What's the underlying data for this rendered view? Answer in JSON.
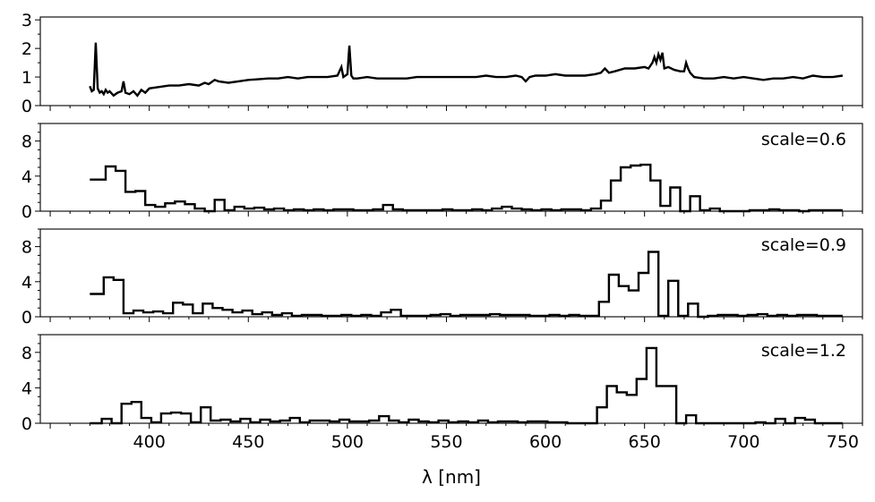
{
  "chart_data": [
    {
      "type": "line",
      "title": "",
      "xlabel": "",
      "ylabel": "",
      "xlim": [
        345,
        760
      ],
      "ylim": [
        0,
        3.1
      ],
      "yticks": [
        0,
        1,
        2,
        3
      ],
      "grid": false,
      "series": [
        {
          "name": "",
          "x": [
            370,
            371,
            372,
            373,
            374,
            375,
            376,
            377,
            378,
            379,
            380,
            382,
            384,
            386,
            387,
            388,
            390,
            392,
            394,
            396,
            398,
            400,
            405,
            410,
            415,
            420,
            425,
            428,
            430,
            433,
            435,
            440,
            445,
            450,
            455,
            460,
            465,
            470,
            475,
            480,
            485,
            490,
            495,
            497,
            498,
            499,
            500,
            501,
            502,
            503,
            505,
            510,
            515,
            520,
            525,
            530,
            535,
            540,
            545,
            550,
            555,
            560,
            565,
            570,
            575,
            580,
            585,
            588,
            590,
            592,
            595,
            600,
            605,
            610,
            615,
            620,
            625,
            628,
            630,
            632,
            635,
            640,
            645,
            650,
            652,
            654,
            655,
            656,
            657,
            658,
            659,
            660,
            662,
            665,
            668,
            670,
            671,
            672,
            673,
            675,
            680,
            685,
            690,
            695,
            700,
            705,
            710,
            715,
            720,
            725,
            730,
            735,
            740,
            745,
            750
          ],
          "y": [
            0.68,
            0.5,
            0.55,
            2.2,
            0.6,
            0.45,
            0.5,
            0.4,
            0.55,
            0.45,
            0.5,
            0.35,
            0.45,
            0.5,
            0.85,
            0.45,
            0.4,
            0.5,
            0.35,
            0.55,
            0.45,
            0.6,
            0.65,
            0.7,
            0.7,
            0.75,
            0.7,
            0.8,
            0.75,
            0.9,
            0.85,
            0.8,
            0.85,
            0.9,
            0.92,
            0.95,
            0.95,
            1.0,
            0.95,
            1.0,
            1.0,
            1.0,
            1.05,
            1.35,
            1.0,
            1.05,
            1.1,
            2.1,
            1.05,
            0.95,
            0.95,
            1.0,
            0.95,
            0.95,
            0.95,
            0.95,
            1.0,
            1.0,
            1.0,
            1.0,
            1.0,
            1.0,
            1.0,
            1.05,
            1.0,
            1.0,
            1.05,
            1.0,
            0.85,
            1.0,
            1.05,
            1.05,
            1.1,
            1.05,
            1.05,
            1.05,
            1.1,
            1.15,
            1.3,
            1.15,
            1.2,
            1.3,
            1.3,
            1.35,
            1.3,
            1.5,
            1.7,
            1.5,
            1.8,
            1.6,
            1.85,
            1.3,
            1.35,
            1.25,
            1.2,
            1.2,
            1.5,
            1.3,
            1.15,
            1.0,
            0.95,
            0.95,
            1.0,
            0.95,
            1.0,
            0.95,
            0.9,
            0.95,
            0.95,
            1.0,
            0.95,
            1.05,
            1.0,
            1.0,
            1.05
          ]
        }
      ]
    },
    {
      "type": "line",
      "title": "",
      "annotation": "scale=0.6",
      "xlabel": "",
      "ylabel": "",
      "xlim": [
        345,
        760
      ],
      "ylim": [
        0,
        10
      ],
      "yticks": [
        0,
        4,
        8
      ],
      "grid": false,
      "series": [
        {
          "name": "",
          "x": [
            370,
            378,
            383,
            388,
            393,
            398,
            403,
            408,
            413,
            418,
            423,
            428,
            433,
            438,
            443,
            448,
            453,
            458,
            463,
            468,
            473,
            478,
            483,
            488,
            493,
            498,
            503,
            508,
            513,
            518,
            523,
            528,
            533,
            538,
            543,
            548,
            553,
            558,
            563,
            568,
            573,
            578,
            583,
            588,
            593,
            598,
            603,
            608,
            613,
            618,
            623,
            628,
            633,
            638,
            643,
            648,
            653,
            658,
            663,
            668,
            673,
            678,
            683,
            688,
            693,
            698,
            703,
            708,
            713,
            718,
            723,
            728,
            733,
            738,
            743,
            748
          ],
          "y": [
            3.6,
            5.1,
            4.6,
            2.2,
            2.3,
            0.7,
            0.5,
            0.9,
            1.1,
            0.8,
            0.3,
            0.0,
            1.3,
            0.1,
            0.5,
            0.3,
            0.4,
            0.2,
            0.3,
            0.1,
            0.2,
            0.1,
            0.2,
            0.1,
            0.2,
            0.2,
            0.1,
            0.1,
            0.2,
            0.7,
            0.2,
            0.1,
            0.1,
            0.1,
            0.1,
            0.2,
            0.1,
            0.1,
            0.2,
            0.1,
            0.3,
            0.5,
            0.3,
            0.2,
            0.1,
            0.2,
            0.1,
            0.2,
            0.2,
            0.1,
            0.3,
            1.2,
            3.5,
            5.0,
            5.2,
            5.3,
            3.5,
            0.6,
            2.7,
            0.0,
            1.7,
            0.1,
            0.3,
            0.0,
            0.0,
            0.0,
            0.1,
            0.1,
            0.2,
            0.1,
            0.1,
            0.0,
            0.1,
            0.1,
            0.1,
            0.1
          ]
        }
      ]
    },
    {
      "type": "line",
      "title": "",
      "annotation": "scale=0.9",
      "xlabel": "",
      "ylabel": "",
      "xlim": [
        345,
        760
      ],
      "ylim": [
        0,
        10
      ],
      "yticks": [
        0,
        4,
        8
      ],
      "grid": false,
      "series": [
        {
          "name": "",
          "x": [
            370,
            377,
            382,
            387,
            392,
            397,
            402,
            407,
            412,
            417,
            422,
            427,
            432,
            437,
            442,
            447,
            452,
            457,
            462,
            467,
            472,
            477,
            482,
            487,
            492,
            497,
            502,
            507,
            512,
            517,
            522,
            527,
            532,
            537,
            542,
            547,
            552,
            557,
            562,
            567,
            572,
            577,
            582,
            587,
            592,
            597,
            602,
            607,
            612,
            617,
            622,
            627,
            632,
            637,
            642,
            647,
            652,
            657,
            662,
            667,
            672,
            677,
            682,
            687,
            692,
            697,
            702,
            707,
            712,
            717,
            722,
            727,
            732,
            737,
            742,
            747
          ],
          "y": [
            2.6,
            4.5,
            4.2,
            0.4,
            0.7,
            0.5,
            0.6,
            0.4,
            1.6,
            1.4,
            0.4,
            1.5,
            1.0,
            0.8,
            0.5,
            0.7,
            0.3,
            0.5,
            0.2,
            0.4,
            0.1,
            0.2,
            0.2,
            0.1,
            0.1,
            0.2,
            0.1,
            0.2,
            0.1,
            0.5,
            0.8,
            0.1,
            0.1,
            0.1,
            0.2,
            0.3,
            0.1,
            0.2,
            0.2,
            0.2,
            0.3,
            0.2,
            0.2,
            0.2,
            0.1,
            0.1,
            0.2,
            0.1,
            0.2,
            0.1,
            0.1,
            1.7,
            4.8,
            3.5,
            3.0,
            5.0,
            7.4,
            0.1,
            4.1,
            0.1,
            1.5,
            0.0,
            0.1,
            0.2,
            0.2,
            0.1,
            0.2,
            0.3,
            0.1,
            0.2,
            0.1,
            0.2,
            0.2,
            0.1,
            0.1,
            0.1
          ]
        }
      ]
    },
    {
      "type": "line",
      "title": "",
      "annotation": "scale=1.2",
      "xlabel": "λ [nm]",
      "ylabel": "",
      "xlim": [
        345,
        760
      ],
      "ylim": [
        0,
        10
      ],
      "xticks": [
        400,
        450,
        500,
        550,
        600,
        650,
        700,
        750
      ],
      "yticks": [
        0,
        4,
        8
      ],
      "grid": false,
      "series": [
        {
          "name": "",
          "x": [
            370,
            376,
            381,
            386,
            391,
            396,
            401,
            406,
            411,
            416,
            421,
            426,
            431,
            436,
            441,
            446,
            451,
            456,
            461,
            466,
            471,
            476,
            481,
            486,
            491,
            496,
            501,
            506,
            511,
            516,
            521,
            526,
            531,
            536,
            541,
            546,
            551,
            556,
            561,
            566,
            571,
            576,
            581,
            586,
            591,
            596,
            601,
            606,
            611,
            616,
            621,
            626,
            631,
            636,
            641,
            646,
            651,
            656,
            661,
            666,
            671,
            676,
            681,
            686,
            691,
            696,
            701,
            706,
            711,
            716,
            721,
            726,
            731,
            736,
            741,
            746
          ],
          "y": [
            0.0,
            0.5,
            0.0,
            2.2,
            2.4,
            0.6,
            0.1,
            1.1,
            1.2,
            1.1,
            0.1,
            1.8,
            0.3,
            0.4,
            0.2,
            0.5,
            0.1,
            0.4,
            0.2,
            0.3,
            0.6,
            0.1,
            0.3,
            0.3,
            0.2,
            0.4,
            0.2,
            0.2,
            0.3,
            0.8,
            0.3,
            0.1,
            0.4,
            0.2,
            0.1,
            0.3,
            0.1,
            0.2,
            0.1,
            0.3,
            0.1,
            0.2,
            0.2,
            0.1,
            0.2,
            0.2,
            0.1,
            0.1,
            0.0,
            0.0,
            0.0,
            1.8,
            4.2,
            3.5,
            3.2,
            5.0,
            8.5,
            4.2,
            4.2,
            0.0,
            0.9,
            0.0,
            0.0,
            0.0,
            0.0,
            0.0,
            0.0,
            0.1,
            0.0,
            0.5,
            0.0,
            0.6,
            0.4,
            0.0,
            0.0,
            0.0
          ]
        }
      ]
    }
  ]
}
